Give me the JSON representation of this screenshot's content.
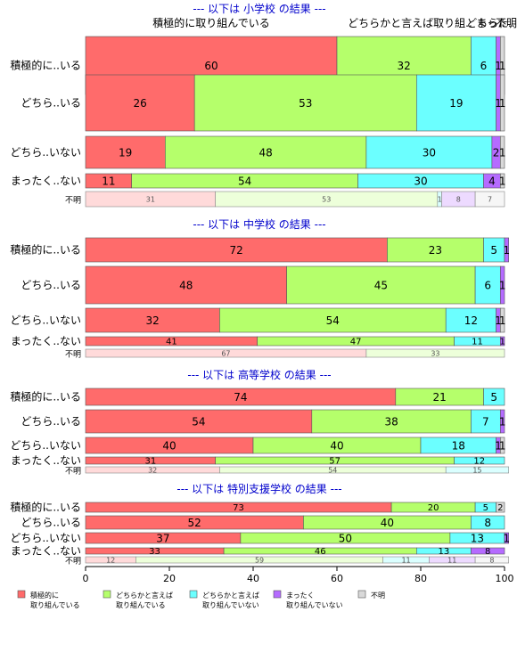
{
  "chart_data": {
    "type": "bar",
    "orientation": "horizontal",
    "stacked": true,
    "xlim": [
      0,
      100
    ],
    "x_ticks": [
      "0",
      "20",
      "40",
      "60",
      "80",
      "100"
    ],
    "series": [
      {
        "name": "積極的に\n取り組んでいる",
        "color": "#ff6b6b"
      },
      {
        "name": "どちらかと言えば\n取り組んでいる",
        "color": "#b5ff6b"
      },
      {
        "name": "どちらかと言えば\n取り組んでいない",
        "color": "#6bffff"
      },
      {
        "name": "まったく\n取り組んでいない",
        "color": "#b56bff"
      },
      {
        "name": "不明",
        "color": "#d9d9d9"
      }
    ],
    "top_labels": [
      "積極的に取り組んでいる",
      "どちらかと言えば取り組..",
      "どちら..",
      "まった..",
      "不明"
    ],
    "groups": [
      {
        "title": "--- 以下は 小学校 の結果 ---",
        "rows": [
          {
            "label": "積極的に..いる",
            "values": [
              60,
              32,
              6,
              1,
              1
            ]
          },
          {
            "label": "どちら..いる",
            "values": [
              26,
              53,
              19,
              1,
              1
            ]
          },
          {
            "label": "どちら..いない",
            "values": [
              19,
              48,
              30,
              2,
              1
            ]
          },
          {
            "label": "まったく..ない",
            "values": [
              11,
              54,
              30,
              4,
              1
            ]
          },
          {
            "label": "不明",
            "values": [
              31,
              53,
              1,
              8,
              7
            ],
            "faded": true
          }
        ]
      },
      {
        "title": "--- 以下は 中学校 の結果 ---",
        "rows": [
          {
            "label": "積極的に..いる",
            "values": [
              72,
              23,
              5,
              1,
              0
            ]
          },
          {
            "label": "どちら..いる",
            "values": [
              48,
              45,
              6,
              1,
              0
            ]
          },
          {
            "label": "どちら..いない",
            "values": [
              32,
              54,
              12,
              1,
              1
            ]
          },
          {
            "label": "まったく..ない",
            "values": [
              41,
              47,
              11,
              1,
              0
            ]
          },
          {
            "label": "不明",
            "values": [
              67,
              33,
              0,
              0,
              0
            ],
            "faded": true
          }
        ]
      },
      {
        "title": "--- 以下は 高等学校 の結果 ---",
        "rows": [
          {
            "label": "積極的に..いる",
            "values": [
              74,
              21,
              5,
              0,
              0
            ]
          },
          {
            "label": "どちら..いる",
            "values": [
              54,
              38,
              7,
              1,
              0
            ]
          },
          {
            "label": "どちら..いない",
            "values": [
              40,
              40,
              18,
              1,
              1
            ]
          },
          {
            "label": "まったく..ない",
            "values": [
              31,
              57,
              12,
              0,
              0
            ]
          },
          {
            "label": "不明",
            "values": [
              32,
              54,
              15,
              0,
              0
            ],
            "faded": true
          }
        ]
      },
      {
        "title": "--- 以下は 特別支援学校 の結果 ---",
        "rows": [
          {
            "label": "積極的に..いる",
            "values": [
              73,
              20,
              5,
              0,
              2
            ]
          },
          {
            "label": "どちら..いる",
            "values": [
              52,
              40,
              8,
              0,
              0
            ]
          },
          {
            "label": "どちら..いない",
            "values": [
              37,
              50,
              13,
              1,
              0
            ]
          },
          {
            "label": "まったく..ない",
            "values": [
              33,
              46,
              13,
              8,
              0
            ]
          },
          {
            "label": "不明",
            "values": [
              12,
              59,
              11,
              11,
              8
            ],
            "faded": true
          }
        ]
      }
    ]
  }
}
